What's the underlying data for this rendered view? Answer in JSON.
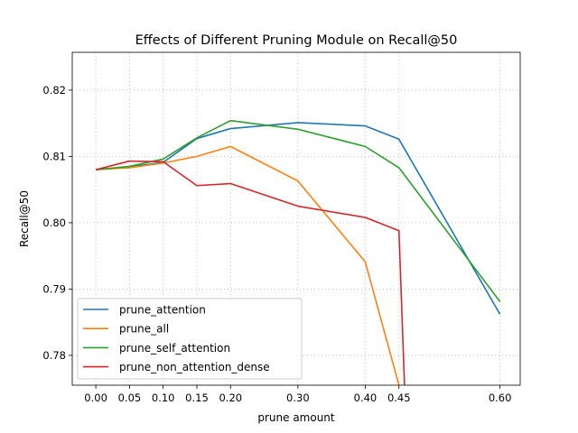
{
  "chart_data": {
    "type": "line",
    "title": "Effects of Different Pruning Module on Recall@50",
    "xlabel": "prune amount",
    "ylabel": "Recall@50",
    "x": [
      0.0,
      0.05,
      0.1,
      0.15,
      0.2,
      0.3,
      0.4,
      0.45,
      0.6
    ],
    "x_ticks": [
      "0.00",
      "0.05",
      "0.10",
      "0.15",
      "0.20",
      "0.30",
      "0.40",
      "0.45",
      "0.60"
    ],
    "y_ticks": [
      "0.78",
      "0.79",
      "0.80",
      "0.81",
      "0.82"
    ],
    "xlim": [
      -0.035,
      0.63
    ],
    "ylim": [
      0.7755,
      0.8257
    ],
    "grid": true,
    "legend_position": "lower-left",
    "series": [
      {
        "name": "prune_attention",
        "color": "#1f77b4",
        "x": [
          0.0,
          0.05,
          0.1,
          0.15,
          0.2,
          0.3,
          0.4,
          0.45,
          0.6
        ],
        "values": [
          0.808,
          0.8084,
          0.8091,
          0.8127,
          0.8142,
          0.8151,
          0.8146,
          0.8126,
          0.7862
        ]
      },
      {
        "name": "prune_all",
        "color": "#ff7f0e",
        "x": [
          0.0,
          0.05,
          0.1,
          0.15,
          0.2,
          0.3,
          0.4,
          0.45,
          0.46
        ],
        "values": [
          0.808,
          0.8083,
          0.809,
          0.81,
          0.8115,
          0.8063,
          0.7941,
          0.7755,
          0.7706
        ]
      },
      {
        "name": "prune_self_attention",
        "color": "#2ca02c",
        "x": [
          0.0,
          0.05,
          0.1,
          0.15,
          0.2,
          0.3,
          0.4,
          0.45,
          0.6
        ],
        "values": [
          0.808,
          0.8085,
          0.8096,
          0.8128,
          0.8154,
          0.8141,
          0.8115,
          0.8083,
          0.7881
        ]
      },
      {
        "name": "prune_non_attention_dense",
        "color": "#d62728",
        "x": [
          0.0,
          0.05,
          0.1,
          0.15,
          0.2,
          0.3,
          0.4,
          0.45,
          0.46
        ],
        "values": [
          0.808,
          0.8093,
          0.8092,
          0.8056,
          0.8059,
          0.8025,
          0.8008,
          0.7988,
          0.7706
        ]
      }
    ]
  }
}
